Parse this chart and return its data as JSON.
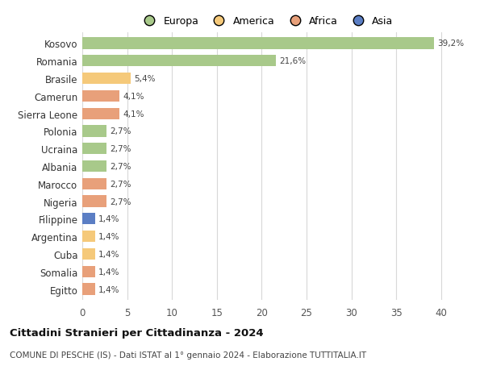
{
  "categories": [
    "Kosovo",
    "Romania",
    "Brasile",
    "Camerun",
    "Sierra Leone",
    "Polonia",
    "Ucraina",
    "Albania",
    "Marocco",
    "Nigeria",
    "Filippine",
    "Argentina",
    "Cuba",
    "Somalia",
    "Egitto"
  ],
  "values": [
    39.2,
    21.6,
    5.4,
    4.1,
    4.1,
    2.7,
    2.7,
    2.7,
    2.7,
    2.7,
    1.4,
    1.4,
    1.4,
    1.4,
    1.4
  ],
  "colors": [
    "#a8c98a",
    "#a8c98a",
    "#f5c97a",
    "#e8a07a",
    "#e8a07a",
    "#a8c98a",
    "#a8c98a",
    "#a8c98a",
    "#e8a07a",
    "#e8a07a",
    "#5b7ec4",
    "#f5c97a",
    "#f5c97a",
    "#e8a07a",
    "#e8a07a"
  ],
  "legend_labels": [
    "Europa",
    "America",
    "Africa",
    "Asia"
  ],
  "legend_colors": [
    "#a8c98a",
    "#f5c97a",
    "#e8a07a",
    "#5b7ec4"
  ],
  "title": "Cittadini Stranieri per Cittadinanza - 2024",
  "subtitle": "COMUNE DI PESCHE (IS) - Dati ISTAT al 1° gennaio 2024 - Elaborazione TUTTITALIA.IT",
  "xlim": [
    0,
    41
  ],
  "xticks": [
    0,
    5,
    10,
    15,
    20,
    25,
    30,
    35,
    40
  ],
  "background_color": "#ffffff",
  "grid_color": "#d8d8d8",
  "bar_height": 0.65
}
